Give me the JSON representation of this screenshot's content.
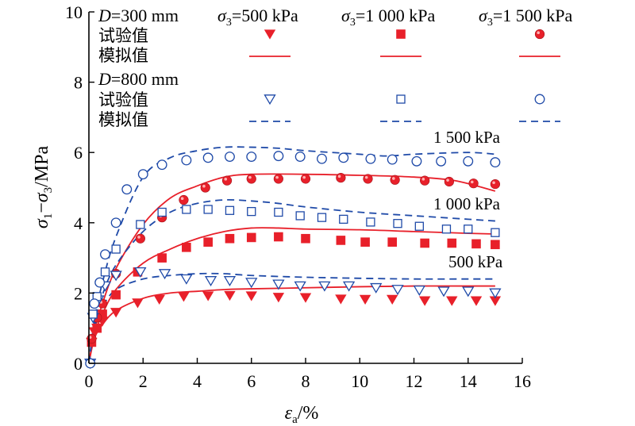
{
  "chart_data": {
    "type": "scatter",
    "xlabel": "εa/%",
    "ylabel": "σ1−σ3/MPa",
    "xlim": [
      0,
      16
    ],
    "ylim": [
      0,
      10
    ],
    "x_ticks": [
      "0",
      "2",
      "4",
      "6",
      "8",
      "10",
      "12",
      "14",
      "16"
    ],
    "y_ticks": [
      "0",
      "2",
      "4",
      "6",
      "8",
      "10"
    ],
    "legend": {
      "position": "top",
      "group_300": "D=300 mm",
      "group_800": "D=800 mm",
      "col_500": "σ3=500 kPa",
      "col_1000": "σ3=1 000 kPa",
      "col_1500": "σ3=1 500 kPa",
      "row_test": "试验值",
      "row_sim": "模拟值"
    },
    "curve_labels": {
      "l500": "500 kPa",
      "l1000": "1 000 kPa",
      "l1500": "1 500 kPa"
    },
    "colors": {
      "d300": "#e8202a",
      "d800": "#1f4aa8"
    },
    "series": [
      {
        "name": "D=300 mm σ3=500 kPa 试验值",
        "marker": "triangle-down-filled",
        "color": "#e8202a",
        "points": [
          [
            0.1,
            0.6
          ],
          [
            0.2,
            0.9
          ],
          [
            0.3,
            1.0
          ],
          [
            0.5,
            1.2
          ],
          [
            1.0,
            1.45
          ],
          [
            1.8,
            1.72
          ],
          [
            2.6,
            1.82
          ],
          [
            3.5,
            1.9
          ],
          [
            4.4,
            1.92
          ],
          [
            5.2,
            1.93
          ],
          [
            6.0,
            1.92
          ],
          [
            7.0,
            1.88
          ],
          [
            8.0,
            1.87
          ],
          [
            9.3,
            1.83
          ],
          [
            10.2,
            1.82
          ],
          [
            11.2,
            1.82
          ],
          [
            12.4,
            1.78
          ],
          [
            13.4,
            1.78
          ],
          [
            14.3,
            1.78
          ],
          [
            15.0,
            1.78
          ]
        ]
      },
      {
        "name": "D=300 mm σ3=1 000 kPa 试验值",
        "marker": "square-filled",
        "color": "#e8202a",
        "points": [
          [
            0.1,
            0.6
          ],
          [
            0.3,
            1.0
          ],
          [
            0.5,
            1.4
          ],
          [
            1.0,
            1.95
          ],
          [
            1.8,
            2.6
          ],
          [
            2.7,
            3.0
          ],
          [
            3.6,
            3.3
          ],
          [
            4.4,
            3.45
          ],
          [
            5.2,
            3.55
          ],
          [
            6.0,
            3.58
          ],
          [
            7.0,
            3.6
          ],
          [
            8.0,
            3.55
          ],
          [
            9.3,
            3.5
          ],
          [
            10.2,
            3.45
          ],
          [
            11.2,
            3.45
          ],
          [
            12.4,
            3.42
          ],
          [
            13.4,
            3.42
          ],
          [
            14.3,
            3.4
          ],
          [
            15.0,
            3.38
          ]
        ]
      },
      {
        "name": "D=300 mm σ3=1 500 kPa 试验值",
        "marker": "circle-filled",
        "color": "#e8202a",
        "points": [
          [
            0.1,
            0.7
          ],
          [
            0.3,
            1.3
          ],
          [
            0.5,
            1.7
          ],
          [
            1.0,
            2.55
          ],
          [
            1.9,
            3.55
          ],
          [
            2.7,
            4.15
          ],
          [
            3.5,
            4.65
          ],
          [
            4.3,
            5.0
          ],
          [
            5.1,
            5.2
          ],
          [
            6.0,
            5.25
          ],
          [
            7.0,
            5.25
          ],
          [
            8.0,
            5.25
          ],
          [
            9.3,
            5.28
          ],
          [
            10.3,
            5.25
          ],
          [
            11.3,
            5.22
          ],
          [
            12.4,
            5.2
          ],
          [
            13.3,
            5.17
          ],
          [
            14.2,
            5.12
          ],
          [
            15.0,
            5.1
          ]
        ]
      },
      {
        "name": "D=800 mm σ3=500 kPa 试验值",
        "marker": "triangle-down-open",
        "color": "#1f4aa8",
        "points": [
          [
            0.05,
            0.0
          ],
          [
            0.15,
            1.3
          ],
          [
            0.35,
            1.8
          ],
          [
            0.6,
            2.2
          ],
          [
            1.0,
            2.5
          ],
          [
            1.9,
            2.6
          ],
          [
            2.8,
            2.55
          ],
          [
            3.6,
            2.4
          ],
          [
            4.5,
            2.35
          ],
          [
            5.2,
            2.35
          ],
          [
            6.0,
            2.3
          ],
          [
            7.0,
            2.25
          ],
          [
            7.8,
            2.2
          ],
          [
            8.7,
            2.2
          ],
          [
            9.6,
            2.2
          ],
          [
            10.6,
            2.15
          ],
          [
            11.4,
            2.1
          ],
          [
            12.2,
            2.08
          ],
          [
            13.1,
            2.05
          ],
          [
            14.0,
            2.05
          ],
          [
            15.0,
            2.0
          ]
        ]
      },
      {
        "name": "D=800 mm σ3=1 000 kPa 试验值",
        "marker": "square-open",
        "color": "#1f4aa8",
        "points": [
          [
            0.15,
            1.4
          ],
          [
            0.3,
            1.9
          ],
          [
            0.6,
            2.6
          ],
          [
            1.0,
            3.25
          ],
          [
            1.9,
            3.95
          ],
          [
            2.7,
            4.3
          ],
          [
            3.6,
            4.38
          ],
          [
            4.4,
            4.38
          ],
          [
            5.2,
            4.35
          ],
          [
            6.0,
            4.32
          ],
          [
            7.0,
            4.3
          ],
          [
            7.8,
            4.2
          ],
          [
            8.6,
            4.15
          ],
          [
            9.4,
            4.1
          ],
          [
            10.4,
            4.02
          ],
          [
            11.4,
            3.98
          ],
          [
            12.2,
            3.9
          ],
          [
            13.2,
            3.82
          ],
          [
            14.0,
            3.82
          ],
          [
            15.0,
            3.72
          ]
        ]
      },
      {
        "name": "D=800 mm σ3=1 500 kPa 试验值",
        "marker": "circle-open",
        "color": "#1f4aa8",
        "points": [
          [
            0.05,
            0.0
          ],
          [
            0.2,
            1.7
          ],
          [
            0.4,
            2.3
          ],
          [
            0.6,
            3.1
          ],
          [
            1.0,
            4.0
          ],
          [
            1.4,
            4.95
          ],
          [
            2.0,
            5.38
          ],
          [
            2.7,
            5.65
          ],
          [
            3.6,
            5.78
          ],
          [
            4.4,
            5.85
          ],
          [
            5.2,
            5.88
          ],
          [
            6.0,
            5.88
          ],
          [
            7.0,
            5.9
          ],
          [
            7.8,
            5.88
          ],
          [
            8.6,
            5.82
          ],
          [
            9.4,
            5.85
          ],
          [
            10.4,
            5.82
          ],
          [
            11.2,
            5.8
          ],
          [
            12.1,
            5.75
          ],
          [
            13.0,
            5.75
          ],
          [
            14.0,
            5.75
          ],
          [
            15.0,
            5.72
          ]
        ]
      },
      {
        "name": "D=300 mm σ3=500 kPa 模拟值",
        "line": "solid",
        "color": "#e8202a",
        "points": [
          [
            0,
            0
          ],
          [
            0.2,
            0.7
          ],
          [
            0.5,
            1.1
          ],
          [
            1.0,
            1.5
          ],
          [
            2.0,
            1.85
          ],
          [
            3.0,
            2.0
          ],
          [
            4.0,
            2.05
          ],
          [
            5.0,
            2.1
          ],
          [
            6.0,
            2.12
          ],
          [
            8.0,
            2.15
          ],
          [
            10.0,
            2.18
          ],
          [
            12.0,
            2.2
          ],
          [
            14.0,
            2.2
          ],
          [
            15.0,
            2.2
          ]
        ]
      },
      {
        "name": "D=300 mm σ3=1 000 kPa 模拟值",
        "line": "solid",
        "color": "#e8202a",
        "points": [
          [
            0,
            0
          ],
          [
            0.2,
            0.8
          ],
          [
            0.5,
            1.4
          ],
          [
            1.0,
            2.1
          ],
          [
            2.0,
            2.85
          ],
          [
            3.0,
            3.25
          ],
          [
            4.0,
            3.55
          ],
          [
            5.0,
            3.75
          ],
          [
            6.0,
            3.85
          ],
          [
            7.0,
            3.85
          ],
          [
            8.0,
            3.82
          ],
          [
            10.0,
            3.8
          ],
          [
            12.0,
            3.75
          ],
          [
            14.0,
            3.7
          ],
          [
            15.0,
            3.68
          ]
        ]
      },
      {
        "name": "D=300 mm σ3=1 500 kPa 模拟值",
        "line": "solid",
        "color": "#e8202a",
        "points": [
          [
            0,
            0
          ],
          [
            0.2,
            0.9
          ],
          [
            0.5,
            1.7
          ],
          [
            1.0,
            2.7
          ],
          [
            2.0,
            3.95
          ],
          [
            3.0,
            4.7
          ],
          [
            4.0,
            5.05
          ],
          [
            5.0,
            5.3
          ],
          [
            6.0,
            5.38
          ],
          [
            8.0,
            5.38
          ],
          [
            10.0,
            5.35
          ],
          [
            12.0,
            5.3
          ],
          [
            13.5,
            5.2
          ],
          [
            15.0,
            4.9
          ]
        ]
      },
      {
        "name": "D=800 mm σ3=500 kPa 模拟值",
        "line": "dash",
        "color": "#1f4aa8",
        "points": [
          [
            0,
            0
          ],
          [
            0.2,
            1.0
          ],
          [
            0.5,
            1.6
          ],
          [
            1.0,
            2.1
          ],
          [
            2.0,
            2.4
          ],
          [
            3.0,
            2.5
          ],
          [
            4.0,
            2.55
          ],
          [
            5.0,
            2.55
          ],
          [
            6.0,
            2.5
          ],
          [
            8.0,
            2.45
          ],
          [
            10.0,
            2.42
          ],
          [
            12.0,
            2.4
          ],
          [
            14.0,
            2.4
          ],
          [
            15.0,
            2.4
          ]
        ]
      },
      {
        "name": "D=800 mm σ3=1 000 kPa 模拟值",
        "line": "dash",
        "color": "#1f4aa8",
        "points": [
          [
            0,
            0
          ],
          [
            0.2,
            1.1
          ],
          [
            0.5,
            1.95
          ],
          [
            1.0,
            2.8
          ],
          [
            2.0,
            3.75
          ],
          [
            3.0,
            4.3
          ],
          [
            4.0,
            4.55
          ],
          [
            5.0,
            4.65
          ],
          [
            6.0,
            4.62
          ],
          [
            7.0,
            4.55
          ],
          [
            8.0,
            4.45
          ],
          [
            10.0,
            4.3
          ],
          [
            12.0,
            4.2
          ],
          [
            14.0,
            4.1
          ],
          [
            15.0,
            4.05
          ]
        ]
      },
      {
        "name": "D=800 mm σ3=1 500 kPa 模拟值",
        "line": "dash",
        "color": "#1f4aa8",
        "points": [
          [
            0,
            0
          ],
          [
            0.2,
            1.2
          ],
          [
            0.5,
            2.3
          ],
          [
            1.0,
            3.6
          ],
          [
            2.0,
            5.3
          ],
          [
            3.0,
            5.85
          ],
          [
            4.0,
            6.05
          ],
          [
            5.0,
            6.15
          ],
          [
            6.0,
            6.15
          ],
          [
            7.0,
            6.12
          ],
          [
            8.0,
            6.05
          ],
          [
            10.0,
            5.95
          ],
          [
            11.0,
            5.9
          ],
          [
            12.0,
            5.95
          ],
          [
            14.0,
            6.0
          ],
          [
            15.0,
            5.95
          ]
        ]
      }
    ]
  }
}
